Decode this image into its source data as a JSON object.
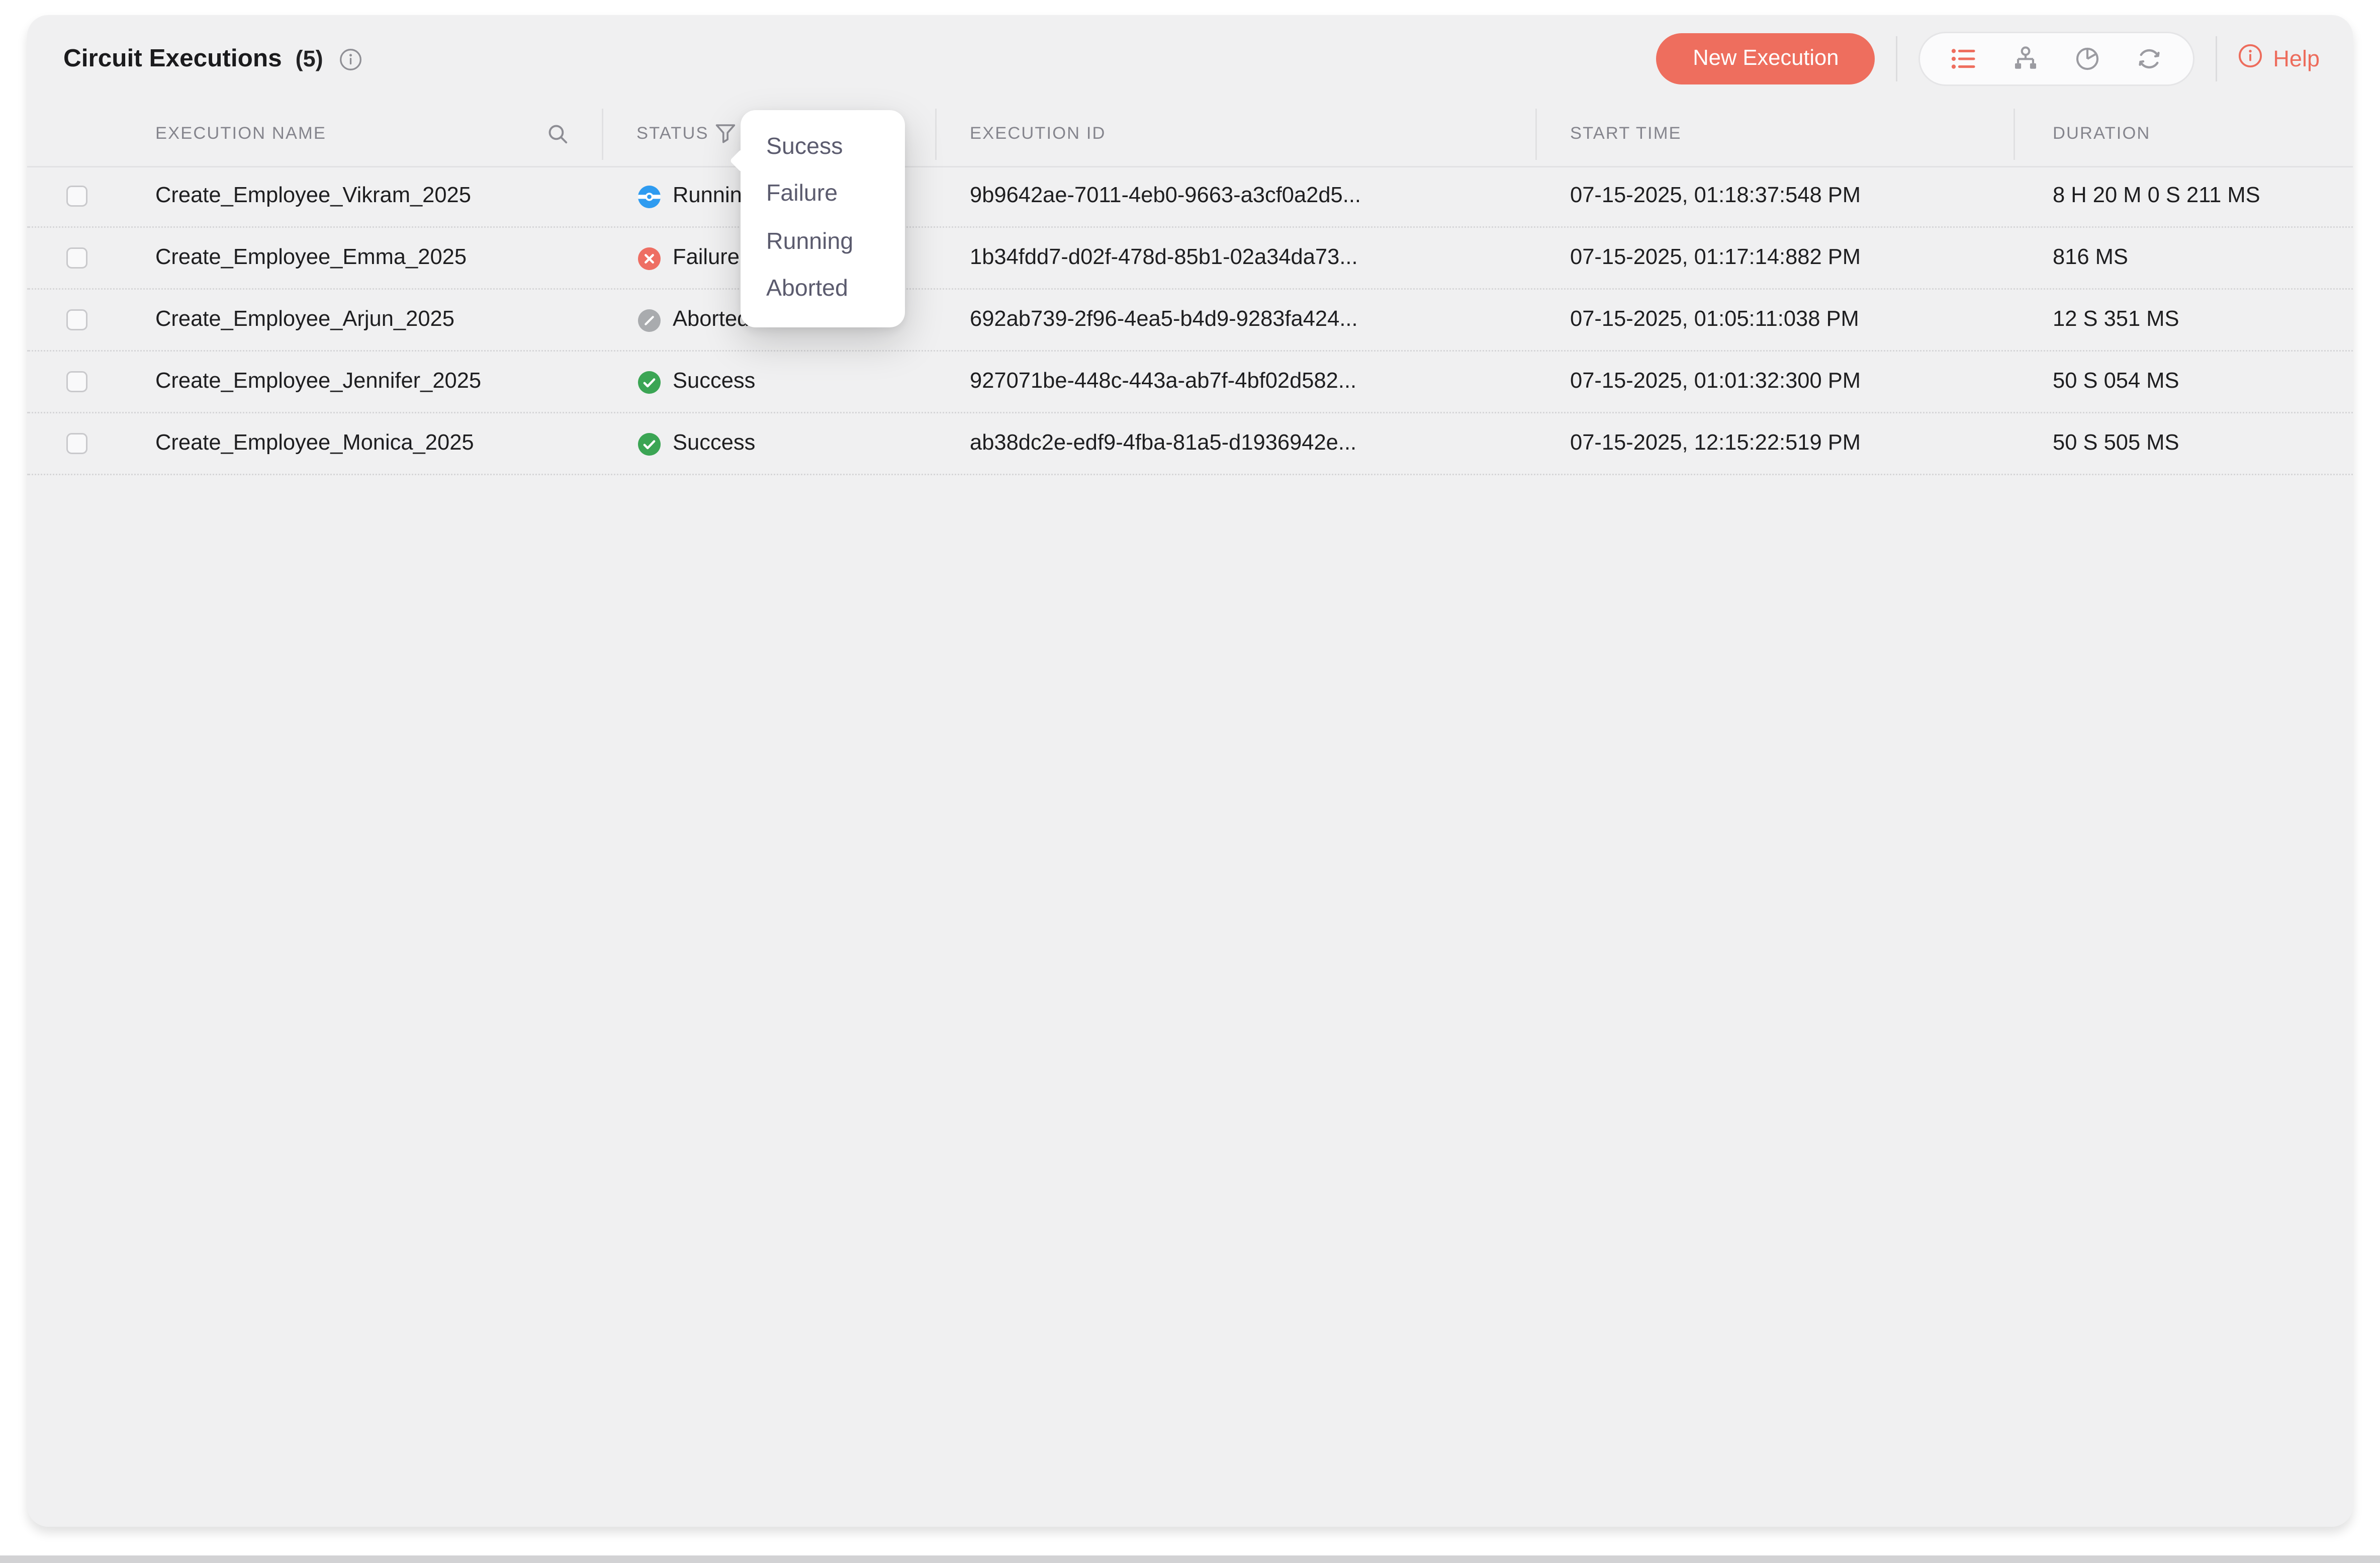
{
  "page": {
    "title": "Circuit Executions",
    "count": "(5)"
  },
  "toolbar": {
    "new_execution_label": "New Execution",
    "help_label": "Help",
    "accent_color": "#ee6e5e",
    "view_icons": [
      {
        "name": "list-view-icon",
        "active": true
      },
      {
        "name": "tree-view-icon",
        "active": false
      },
      {
        "name": "pie-chart-view-icon",
        "active": false
      },
      {
        "name": "loop-view-icon",
        "active": false
      }
    ]
  },
  "table": {
    "columns": [
      "EXECUTION NAME",
      "STATUS",
      "EXECUTION ID",
      "START TIME",
      "DURATION"
    ],
    "rows": [
      {
        "name": "Create_Employee_Vikram_2025",
        "status": "Running",
        "status_color": "#2e9bf0",
        "id": "9b9642ae-7011-4eb0-9663-a3cf0a2d5...",
        "start": "07-15-2025, 01:18:37:548 PM",
        "duration": "8 H 20 M 0 S 211 MS"
      },
      {
        "name": "Create_Employee_Emma_2025",
        "status": "Failure",
        "status_color": "#ee6e63",
        "id": "1b34fdd7-d02f-478d-85b1-02a34da73...",
        "start": "07-15-2025, 01:17:14:882 PM",
        "duration": "816 MS"
      },
      {
        "name": "Create_Employee_Arjun_2025",
        "status": "Aborted",
        "status_color": "#a9abae",
        "id": "692ab739-2f96-4ea5-b4d9-9283fa424...",
        "start": "07-15-2025, 01:05:11:038 PM",
        "duration": "12 S 351 MS"
      },
      {
        "name": "Create_Employee_Jennifer_2025",
        "status": "Success",
        "status_color": "#3ba554",
        "id": "927071be-448c-443a-ab7f-4bf02d582...",
        "start": "07-15-2025, 01:01:32:300 PM",
        "duration": "50 S 054 MS"
      },
      {
        "name": "Create_Employee_Monica_2025",
        "status": "Success",
        "status_color": "#3ba554",
        "id": "ab38dc2e-edf9-4fba-81a5-d1936942e...",
        "start": "07-15-2025, 12:15:22:519 PM",
        "duration": "50 S 505 MS"
      }
    ]
  },
  "status_filter_dropdown": {
    "items": [
      "Sucess",
      "Failure",
      "Running",
      "Aborted"
    ]
  }
}
